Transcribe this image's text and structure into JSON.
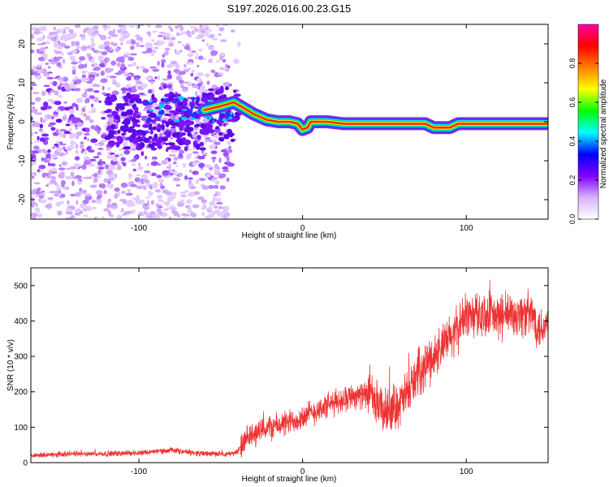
{
  "title": "S197.2026.016.00.23.G15",
  "chart_data": [
    {
      "type": "heatmap",
      "xlabel": "Height of straight line (km)",
      "ylabel": "Frequency (Hz)",
      "xlim": [
        -166,
        150
      ],
      "ylim": [
        -25,
        25
      ],
      "xticks": [
        -100,
        0,
        100
      ],
      "xtick_labels": [
        "-100",
        "0",
        "100"
      ],
      "yticks": [
        -20,
        -10,
        0,
        10,
        20
      ],
      "ytick_labels": [
        "-20",
        "-10",
        "0",
        "10",
        "20"
      ],
      "colorbar": {
        "label": "Normalized spectral amplitude",
        "range": [
          0.0,
          1.0
        ],
        "ticks": [
          0.0,
          0.2,
          0.4,
          0.6,
          0.8
        ],
        "tick_labels": [
          "0.0",
          "0.2",
          "0.4",
          "0.6",
          "0.8"
        ],
        "colors": [
          "#ffffff",
          "#d9b3ff",
          "#8000ff",
          "#0000ff",
          "#00ffff",
          "#00ff00",
          "#ffff00",
          "#ff8000",
          "#ff0000",
          "#ff00a0"
        ]
      },
      "ridge": {
        "x": [
          -60,
          -50,
          -42,
          -38,
          -30,
          -22,
          -15,
          -8,
          -3,
          0,
          3,
          5,
          8,
          15,
          25,
          40,
          60,
          75,
          80,
          85,
          90,
          95,
          100,
          110,
          120,
          130,
          140,
          150
        ],
        "y": [
          3,
          4,
          5,
          4,
          2,
          0.5,
          0,
          0,
          -0.5,
          -2,
          -1.5,
          0,
          0,
          0,
          -0.5,
          -0.5,
          -0.5,
          -0.5,
          -1.5,
          -1.5,
          -1.5,
          -0.5,
          -0.5,
          -0.5,
          -0.5,
          -0.5,
          -0.5,
          -0.5
        ]
      },
      "grid": false
    },
    {
      "type": "line",
      "xlabel": "Height of straight line (km)",
      "ylabel": "SNR (10 * v/v)",
      "xlim": [
        -166,
        150
      ],
      "ylim": [
        0,
        550
      ],
      "xticks": [
        -100,
        0,
        100
      ],
      "xtick_labels": [
        "-100",
        "0",
        "100"
      ],
      "yticks": [
        0,
        100,
        200,
        300,
        400,
        500
      ],
      "ytick_labels": [
        "0",
        "100",
        "200",
        "300",
        "400",
        "500"
      ],
      "color": "#ee3333",
      "trend": {
        "x": [
          -166,
          -140,
          -120,
          -100,
          -80,
          -60,
          -45,
          -40,
          -35,
          -30,
          -20,
          -10,
          0,
          10,
          20,
          30,
          40,
          45,
          50,
          60,
          65,
          70,
          80,
          90,
          95,
          100,
          110,
          120,
          130,
          140,
          145,
          150
        ],
        "y": [
          20,
          25,
          25,
          28,
          35,
          25,
          25,
          30,
          60,
          80,
          100,
          110,
          130,
          150,
          170,
          190,
          190,
          170,
          140,
          170,
          200,
          250,
          300,
          350,
          380,
          420,
          420,
          410,
          420,
          420,
          380,
          390
        ]
      },
      "grid": false
    }
  ]
}
